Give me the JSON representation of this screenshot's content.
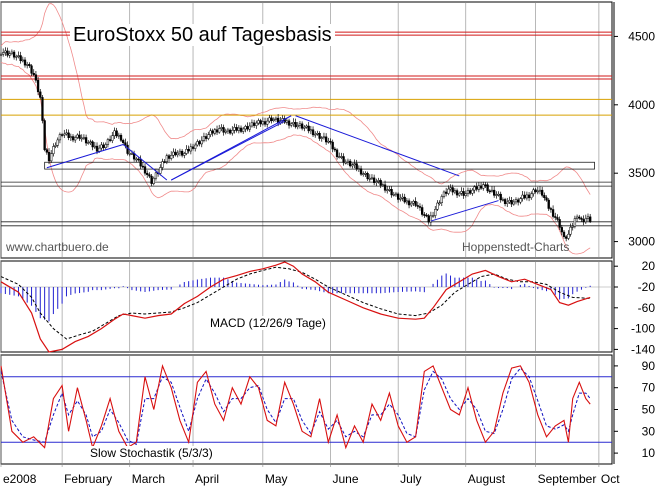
{
  "title": "EuroStoxx 50 auf Tagesbasis",
  "watermark_left": "www.chartbuero.de",
  "watermark_right": "Hoppenstedt-Charts",
  "colors": {
    "price": "#000000",
    "trendline": "#1a1ad8",
    "support_red": "#d01818",
    "support_orange": "#d8a000",
    "bollinger": "#f08a8a",
    "histogram": "#2020d0",
    "signal_red": "#d81010",
    "signal_blue": "#1010c0",
    "hline_blue": "#2a2ad0",
    "hline_dark": "#202020",
    "gridline": "#e0e0e0"
  },
  "chart_data": [
    {
      "type": "candlestick",
      "title": "EuroStoxx 50 auf Tagesbasis",
      "ylim": [
        2880,
        4620
      ],
      "yticks": [
        3000,
        3500,
        4000,
        4500
      ],
      "xlabels": [
        "e2008",
        "February",
        "March",
        "April",
        "May",
        "June",
        "July",
        "August",
        "September",
        "Oct"
      ],
      "xlabel_positions": [
        0,
        28,
        59,
        88,
        120,
        151,
        182,
        213,
        245,
        274
      ],
      "x_range": [
        0,
        280
      ],
      "price_anchors": [
        [
          0,
          4390
        ],
        [
          5,
          4370
        ],
        [
          9,
          4330
        ],
        [
          12,
          4300
        ],
        [
          15,
          4220
        ],
        [
          18,
          4050
        ],
        [
          20,
          3680
        ],
        [
          22,
          3610
        ],
        [
          25,
          3720
        ],
        [
          28,
          3790
        ],
        [
          32,
          3760
        ],
        [
          36,
          3770
        ],
        [
          40,
          3720
        ],
        [
          44,
          3680
        ],
        [
          48,
          3710
        ],
        [
          52,
          3790
        ],
        [
          55,
          3760
        ],
        [
          58,
          3660
        ],
        [
          62,
          3600
        ],
        [
          66,
          3520
        ],
        [
          69,
          3440
        ],
        [
          72,
          3510
        ],
        [
          76,
          3620
        ],
        [
          80,
          3650
        ],
        [
          84,
          3640
        ],
        [
          88,
          3700
        ],
        [
          92,
          3740
        ],
        [
          96,
          3790
        ],
        [
          100,
          3830
        ],
        [
          104,
          3800
        ],
        [
          108,
          3820
        ],
        [
          112,
          3830
        ],
        [
          116,
          3860
        ],
        [
          120,
          3870
        ],
        [
          124,
          3900
        ],
        [
          127,
          3880
        ],
        [
          130,
          3880
        ],
        [
          134,
          3860
        ],
        [
          138,
          3840
        ],
        [
          142,
          3810
        ],
        [
          146,
          3770
        ],
        [
          150,
          3730
        ],
        [
          154,
          3640
        ],
        [
          158,
          3580
        ],
        [
          162,
          3550
        ],
        [
          166,
          3500
        ],
        [
          170,
          3450
        ],
        [
          174,
          3420
        ],
        [
          178,
          3370
        ],
        [
          182,
          3320
        ],
        [
          186,
          3290
        ],
        [
          190,
          3280
        ],
        [
          193,
          3210
        ],
        [
          196,
          3150
        ],
        [
          199,
          3240
        ],
        [
          202,
          3330
        ],
        [
          205,
          3380
        ],
        [
          209,
          3360
        ],
        [
          213,
          3350
        ],
        [
          217,
          3380
        ],
        [
          221,
          3420
        ],
        [
          224,
          3370
        ],
        [
          227,
          3340
        ],
        [
          230,
          3300
        ],
        [
          233,
          3290
        ],
        [
          236,
          3290
        ],
        [
          239,
          3320
        ],
        [
          242,
          3340
        ],
        [
          245,
          3380
        ],
        [
          248,
          3350
        ],
        [
          251,
          3250
        ],
        [
          254,
          3180
        ],
        [
          256,
          3120
        ],
        [
          258,
          3020
        ],
        [
          260,
          3050
        ],
        [
          262,
          3120
        ],
        [
          264,
          3200
        ],
        [
          266,
          3150
        ],
        [
          268,
          3170
        ],
        [
          270,
          3160
        ]
      ],
      "support_lines_red": [
        4520,
        4200
      ],
      "support_lines_orange": [
        4040,
        3925
      ],
      "resistance_zone_lines": [
        3420
      ],
      "support_zone_lines": [
        3130
      ],
      "boxes": [
        {
          "x1": 20,
          "x2": 272,
          "y_top": 3580,
          "y_bottom": 3530
        }
      ],
      "trendlines": [
        {
          "x1": 21,
          "y1": 3540,
          "x2": 56,
          "y2": 3710
        },
        {
          "x1": 56,
          "y1": 3710,
          "x2": 76,
          "y2": 3450
        },
        {
          "x1": 78,
          "y1": 3450,
          "x2": 130,
          "y2": 3880
        },
        {
          "x1": 78,
          "y1": 3450,
          "x2": 133,
          "y2": 3920
        },
        {
          "x1": 135,
          "y1": 3920,
          "x2": 210,
          "y2": 3480
        },
        {
          "x1": 197,
          "y1": 3150,
          "x2": 228,
          "y2": 3300
        }
      ]
    },
    {
      "type": "line",
      "title": "MACD (12/26/9 Tage)",
      "ylim": [
        -145,
        30
      ],
      "yticks": [
        -140,
        -100,
        -60,
        -20,
        20
      ],
      "ytick_labels": [
        "-140",
        "-100",
        "-60",
        "-20",
        "20"
      ],
      "zero_line": -20,
      "macd": [
        [
          0,
          -10
        ],
        [
          8,
          -30
        ],
        [
          14,
          -70
        ],
        [
          18,
          -120
        ],
        [
          22,
          -145
        ],
        [
          28,
          -140
        ],
        [
          34,
          -125
        ],
        [
          40,
          -115
        ],
        [
          46,
          -100
        ],
        [
          52,
          -82
        ],
        [
          56,
          -72
        ],
        [
          60,
          -75
        ],
        [
          66,
          -80
        ],
        [
          72,
          -75
        ],
        [
          78,
          -72
        ],
        [
          84,
          -52
        ],
        [
          90,
          -38
        ],
        [
          96,
          -20
        ],
        [
          102,
          -5
        ],
        [
          108,
          2
        ],
        [
          114,
          10
        ],
        [
          120,
          15
        ],
        [
          126,
          22
        ],
        [
          130,
          28
        ],
        [
          134,
          20
        ],
        [
          138,
          5
        ],
        [
          144,
          -10
        ],
        [
          150,
          -30
        ],
        [
          158,
          -45
        ],
        [
          166,
          -60
        ],
        [
          174,
          -72
        ],
        [
          182,
          -80
        ],
        [
          190,
          -82
        ],
        [
          194,
          -80
        ],
        [
          198,
          -60
        ],
        [
          204,
          -25
        ],
        [
          210,
          -10
        ],
        [
          216,
          5
        ],
        [
          222,
          12
        ],
        [
          228,
          0
        ],
        [
          234,
          -10
        ],
        [
          240,
          -5
        ],
        [
          246,
          -15
        ],
        [
          252,
          -25
        ],
        [
          256,
          -50
        ],
        [
          260,
          -55
        ],
        [
          264,
          -48
        ],
        [
          270,
          -40
        ]
      ],
      "signal": [
        [
          0,
          0
        ],
        [
          8,
          -15
        ],
        [
          14,
          -40
        ],
        [
          18,
          -70
        ],
        [
          24,
          -100
        ],
        [
          30,
          -120
        ],
        [
          36,
          -112
        ],
        [
          42,
          -105
        ],
        [
          48,
          -90
        ],
        [
          54,
          -75
        ],
        [
          60,
          -70
        ],
        [
          66,
          -72
        ],
        [
          72,
          -70
        ],
        [
          78,
          -68
        ],
        [
          84,
          -60
        ],
        [
          90,
          -50
        ],
        [
          96,
          -35
        ],
        [
          102,
          -20
        ],
        [
          108,
          -5
        ],
        [
          114,
          5
        ],
        [
          120,
          12
        ],
        [
          126,
          18
        ],
        [
          132,
          15
        ],
        [
          138,
          8
        ],
        [
          144,
          -5
        ],
        [
          150,
          -20
        ],
        [
          158,
          -35
        ],
        [
          166,
          -50
        ],
        [
          174,
          -62
        ],
        [
          182,
          -72
        ],
        [
          190,
          -75
        ],
        [
          196,
          -70
        ],
        [
          202,
          -55
        ],
        [
          208,
          -30
        ],
        [
          214,
          -15
        ],
        [
          220,
          0
        ],
        [
          226,
          5
        ],
        [
          232,
          -5
        ],
        [
          238,
          -10
        ],
        [
          244,
          -10
        ],
        [
          250,
          -15
        ],
        [
          256,
          -30
        ],
        [
          262,
          -40
        ],
        [
          270,
          -42
        ]
      ],
      "histogram_note": "histogram = macd - signal"
    },
    {
      "type": "line",
      "title": "Slow Stochastik (5/3/3)",
      "ylim": [
        0,
        100
      ],
      "yticks": [
        10,
        30,
        50,
        70,
        90
      ],
      "hlines": [
        80,
        20
      ],
      "k_line": [
        [
          0,
          90
        ],
        [
          5,
          30
        ],
        [
          10,
          20
        ],
        [
          15,
          25
        ],
        [
          20,
          15
        ],
        [
          24,
          60
        ],
        [
          28,
          72
        ],
        [
          31,
          30
        ],
        [
          35,
          70
        ],
        [
          39,
          40
        ],
        [
          42,
          15
        ],
        [
          46,
          35
        ],
        [
          50,
          60
        ],
        [
          54,
          30
        ],
        [
          58,
          15
        ],
        [
          62,
          20
        ],
        [
          66,
          80
        ],
        [
          70,
          50
        ],
        [
          74,
          90
        ],
        [
          78,
          70
        ],
        [
          82,
          40
        ],
        [
          86,
          20
        ],
        [
          90,
          75
        ],
        [
          94,
          85
        ],
        [
          98,
          55
        ],
        [
          102,
          40
        ],
        [
          106,
          70
        ],
        [
          110,
          55
        ],
        [
          114,
          80
        ],
        [
          118,
          70
        ],
        [
          122,
          40
        ],
        [
          126,
          35
        ],
        [
          130,
          75
        ],
        [
          134,
          55
        ],
        [
          138,
          30
        ],
        [
          142,
          25
        ],
        [
          146,
          60
        ],
        [
          150,
          20
        ],
        [
          154,
          45
        ],
        [
          158,
          15
        ],
        [
          162,
          35
        ],
        [
          166,
          20
        ],
        [
          170,
          55
        ],
        [
          174,
          40
        ],
        [
          178,
          65
        ],
        [
          182,
          35
        ],
        [
          186,
          20
        ],
        [
          190,
          25
        ],
        [
          194,
          85
        ],
        [
          198,
          90
        ],
        [
          202,
          70
        ],
        [
          206,
          50
        ],
        [
          210,
          45
        ],
        [
          214,
          70
        ],
        [
          218,
          40
        ],
        [
          222,
          20
        ],
        [
          226,
          30
        ],
        [
          230,
          65
        ],
        [
          234,
          88
        ],
        [
          238,
          90
        ],
        [
          242,
          75
        ],
        [
          246,
          45
        ],
        [
          250,
          25
        ],
        [
          254,
          35
        ],
        [
          258,
          40
        ],
        [
          260,
          20
        ],
        [
          262,
          60
        ],
        [
          265,
          75
        ],
        [
          268,
          60
        ],
        [
          270,
          55
        ]
      ],
      "d_line": [
        [
          0,
          85
        ],
        [
          5,
          40
        ],
        [
          10,
          25
        ],
        [
          15,
          22
        ],
        [
          20,
          20
        ],
        [
          24,
          45
        ],
        [
          28,
          65
        ],
        [
          31,
          45
        ],
        [
          35,
          58
        ],
        [
          39,
          45
        ],
        [
          42,
          25
        ],
        [
          46,
          30
        ],
        [
          50,
          50
        ],
        [
          54,
          38
        ],
        [
          58,
          22
        ],
        [
          62,
          18
        ],
        [
          66,
          60
        ],
        [
          70,
          60
        ],
        [
          74,
          80
        ],
        [
          78,
          75
        ],
        [
          82,
          52
        ],
        [
          86,
          30
        ],
        [
          90,
          60
        ],
        [
          94,
          78
        ],
        [
          98,
          65
        ],
        [
          102,
          48
        ],
        [
          106,
          60
        ],
        [
          110,
          60
        ],
        [
          114,
          70
        ],
        [
          118,
          72
        ],
        [
          122,
          50
        ],
        [
          126,
          38
        ],
        [
          130,
          60
        ],
        [
          134,
          60
        ],
        [
          138,
          40
        ],
        [
          142,
          28
        ],
        [
          146,
          48
        ],
        [
          150,
          32
        ],
        [
          154,
          40
        ],
        [
          158,
          25
        ],
        [
          162,
          30
        ],
        [
          166,
          25
        ],
        [
          170,
          45
        ],
        [
          174,
          45
        ],
        [
          178,
          55
        ],
        [
          182,
          45
        ],
        [
          186,
          28
        ],
        [
          190,
          25
        ],
        [
          194,
          68
        ],
        [
          198,
          85
        ],
        [
          202,
          78
        ],
        [
          206,
          60
        ],
        [
          210,
          50
        ],
        [
          214,
          60
        ],
        [
          218,
          50
        ],
        [
          222,
          30
        ],
        [
          226,
          28
        ],
        [
          230,
          50
        ],
        [
          234,
          78
        ],
        [
          238,
          88
        ],
        [
          242,
          80
        ],
        [
          246,
          58
        ],
        [
          250,
          35
        ],
        [
          254,
          32
        ],
        [
          258,
          36
        ],
        [
          260,
          30
        ],
        [
          262,
          45
        ],
        [
          265,
          65
        ],
        [
          268,
          65
        ],
        [
          270,
          60
        ]
      ]
    }
  ]
}
